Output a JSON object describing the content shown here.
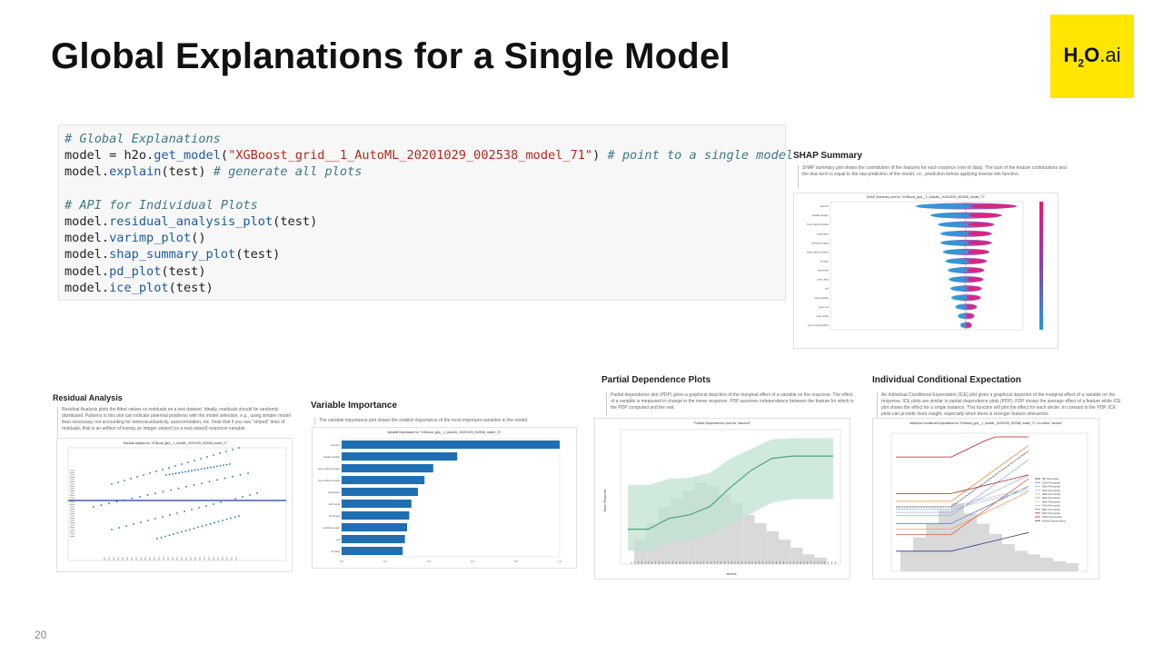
{
  "slide": {
    "title": "Global Explanations for a Single Model",
    "page_number": "20",
    "logo": {
      "main": "H",
      "sub": "2",
      "rest": "O",
      "dot": ".ai"
    }
  },
  "code": {
    "lines": [
      [
        {
          "t": "# Global Explanations",
          "k": "comment"
        }
      ],
      [
        {
          "t": "model",
          "k": "plain"
        },
        {
          "t": " = ",
          "k": "plain"
        },
        {
          "t": "h2o.",
          "k": "plain"
        },
        {
          "t": "get_model",
          "k": "fn"
        },
        {
          "t": "(",
          "k": "plain"
        },
        {
          "t": "\"XGBoost_grid__1_AutoML_20201029_002538_model_71\"",
          "k": "str"
        },
        {
          "t": ") ",
          "k": "plain"
        },
        {
          "t": "# point to a single model",
          "k": "comment"
        }
      ],
      [
        {
          "t": "model.",
          "k": "plain"
        },
        {
          "t": "explain",
          "k": "fn"
        },
        {
          "t": "(test) ",
          "k": "plain"
        },
        {
          "t": "# generate all plots",
          "k": "comment"
        }
      ],
      [
        {
          "t": "",
          "k": "plain"
        }
      ],
      [
        {
          "t": "# API for Individual Plots",
          "k": "comment"
        }
      ],
      [
        {
          "t": "model.",
          "k": "plain"
        },
        {
          "t": "residual_analysis_plot",
          "k": "fn"
        },
        {
          "t": "(test)",
          "k": "plain"
        }
      ],
      [
        {
          "t": "model.",
          "k": "plain"
        },
        {
          "t": "varimp_plot",
          "k": "fn"
        },
        {
          "t": "()",
          "k": "plain"
        }
      ],
      [
        {
          "t": "model.",
          "k": "plain"
        },
        {
          "t": "shap_summary_plot",
          "k": "fn"
        },
        {
          "t": "(test)",
          "k": "plain"
        }
      ],
      [
        {
          "t": "model.",
          "k": "plain"
        },
        {
          "t": "pd_plot",
          "k": "fn"
        },
        {
          "t": "(test)",
          "k": "plain"
        }
      ],
      [
        {
          "t": "model.",
          "k": "plain"
        },
        {
          "t": "ice_plot",
          "k": "fn"
        },
        {
          "t": "(test)",
          "k": "plain"
        }
      ]
    ]
  },
  "shap": {
    "title": "SHAP Summary",
    "description": "SHAP summary plot shows the contribution of the features for each instance (row of data). The sum of the feature contributions and the bias term is equal to the raw prediction of the model, i.e., prediction before applying inverse link function.",
    "plot_title": "SHAP Summary plot for \"XGBoost_grid__1_AutoML_20201029_002538_model_71\"",
    "features": [
      "alcohol",
      "volatile acidity",
      "free sulfur dioxide",
      "sulphates",
      "residual sugar",
      "total sulfur dioxide",
      "density",
      "chlorides",
      "citric acid",
      "pH",
      "fixed acidity",
      "type.red",
      "type.white",
      "type.missing(NA)"
    ]
  },
  "residual": {
    "title": "Residual Analysis",
    "description": "Residual Analysis plots the fitted values vs residuals on a test dataset. Ideally, residuals should be randomly distributed. Patterns in this plot can indicate potential problems with the model selection, e.g., using simpler model than necessary, not accounting for heteroscedasticity, autocorrelation, etc. Note that if you see \"striped\" lines of residuals, that is an artifact of having an integer valued (vs a real valued) response variable.",
    "plot_title": "Residual Analysis for \"XGBoost_grid__1_AutoML_20201029_002538_model_71\""
  },
  "varimp": {
    "title": "Variable Importance",
    "description": "The variable importance plot shows the relative importance of the most important variables in the model.",
    "plot_title": "Variable Importance for \"XGBoost_grid__1_AutoML_20201029_002538_model_71\"",
    "chart_data": {
      "type": "bar",
      "categories": [
        "alcohol",
        "volatile acidity",
        "total sulfur dioxide",
        "free sulfur dioxide",
        "sulphates",
        "citric acid",
        "chlorides",
        "residual sugar",
        "pH",
        "density"
      ],
      "values": [
        1.0,
        0.53,
        0.42,
        0.38,
        0.35,
        0.32,
        0.31,
        0.3,
        0.29,
        0.28
      ],
      "xlim": [
        0,
        1.0
      ]
    }
  },
  "pdp": {
    "title": "Partial Dependence Plots",
    "description": "Partial dependence plot (PDP) gives a graphical depiction of the marginal effect of a variable on the response. The effect of a variable is measured in change in the mean response. PDP assumes independence between the feature for which is the PDP computed and the rest.",
    "plot_title": "Partial Dependence plot for \"alcohol\"",
    "ylabel": "Mean Response",
    "xlabel": "alcohol"
  },
  "ice": {
    "title": "Individual Conditional Expectation",
    "description": "An Individual Conditional Expectation (ICE) plot gives a graphical depiction of the marginal effect of a variable on the response. ICE plots are similar to partial dependence plots (PDP); PDP shows the average effect of a feature while ICE plot shows the effect for a single instance. This function will plot the effect for each decile. In contrast to the PDP, ICE plots can provide more insight, especially when there is stronger feature interaction.",
    "plot_title": "Individual Conditional Expectations for \"XGBoost_grid__1_AutoML_20201029_002538_model_71\" on column \"alcohol\"",
    "legend": [
      "0th Percentile",
      "10th Percentile",
      "20th Percentile",
      "30th Percentile",
      "40th Percentile",
      "50th Percentile",
      "60th Percentile",
      "70th Percentile",
      "80th Percentile",
      "90th Percentile",
      "100th Percentile",
      "Partial Dependence"
    ]
  },
  "colors": {
    "accent": "#fee600",
    "bar": "#1f6fb2",
    "pdp_line": "#4aa57d",
    "pdp_band": "#bfe3d2",
    "hist": "#d9d9d9"
  }
}
